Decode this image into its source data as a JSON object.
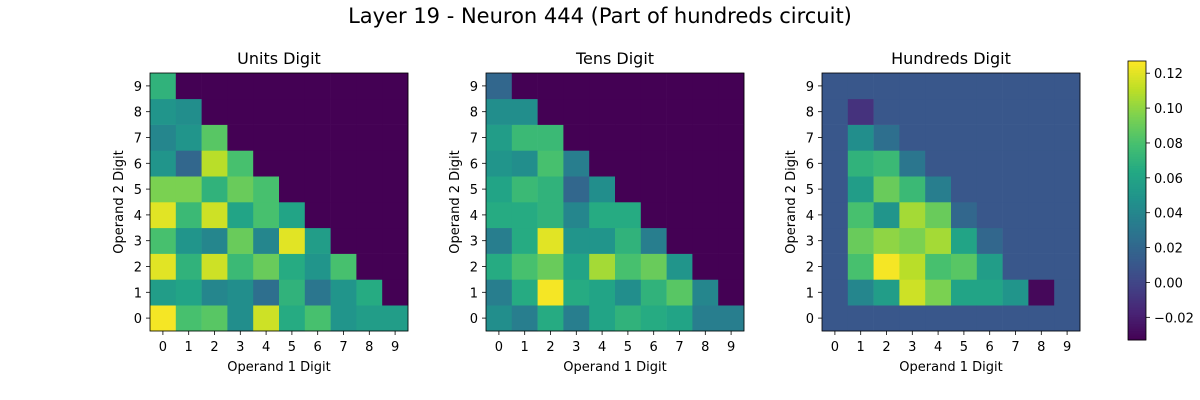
{
  "figure": {
    "title": "Layer 19 - Neuron 444 (Part of hundreds circuit)"
  },
  "colorbar": {
    "ticks": [
      -0.02,
      0.0,
      0.02,
      0.04,
      0.06,
      0.08,
      0.1,
      0.12
    ],
    "tick_labels": [
      "−0.02",
      "0.00",
      "0.02",
      "0.04",
      "0.06",
      "0.08",
      "0.10",
      "0.12"
    ],
    "vmin": -0.033,
    "vmax": 0.127,
    "colormap": "viridis"
  },
  "chart_data": [
    {
      "type": "heatmap",
      "title": "Units Digit",
      "xlabel": "Operand 1 Digit",
      "ylabel": "Operand 2 Digit",
      "x_ticks": [
        "0",
        "1",
        "2",
        "3",
        "4",
        "5",
        "6",
        "7",
        "8",
        "9"
      ],
      "y_ticks": [
        "0",
        "1",
        "2",
        "3",
        "4",
        "5",
        "6",
        "7",
        "8",
        "9"
      ],
      "rows_y_bottom_to_top": [
        [
          0.125,
          0.08,
          0.085,
          0.045,
          0.115,
          0.065,
          0.08,
          0.05,
          0.055,
          0.055
        ],
        [
          0.055,
          0.06,
          0.04,
          0.045,
          0.025,
          0.07,
          0.03,
          0.05,
          0.065,
          -0.033
        ],
        [
          0.12,
          0.07,
          0.115,
          0.075,
          0.09,
          0.065,
          0.05,
          0.08,
          -0.033,
          -0.033
        ],
        [
          0.08,
          0.05,
          0.04,
          0.09,
          0.04,
          0.12,
          0.055,
          -0.033,
          -0.033,
          -0.033
        ],
        [
          0.12,
          0.075,
          0.115,
          0.06,
          0.08,
          0.06,
          -0.033,
          -0.033,
          -0.033,
          -0.033
        ],
        [
          0.095,
          0.095,
          0.07,
          0.09,
          0.08,
          -0.033,
          -0.033,
          -0.033,
          -0.033,
          -0.033
        ],
        [
          0.05,
          0.02,
          0.11,
          0.08,
          -0.033,
          -0.033,
          -0.033,
          -0.033,
          -0.033,
          -0.033
        ],
        [
          0.04,
          0.05,
          0.085,
          -0.033,
          -0.033,
          -0.033,
          -0.033,
          -0.033,
          -0.033,
          -0.033
        ],
        [
          0.05,
          0.045,
          -0.033,
          -0.033,
          -0.033,
          -0.033,
          -0.033,
          -0.033,
          -0.033,
          -0.033
        ],
        [
          0.07,
          -0.033,
          -0.033,
          -0.033,
          -0.033,
          -0.033,
          -0.033,
          -0.033,
          -0.033,
          -0.033
        ]
      ]
    },
    {
      "type": "heatmap",
      "title": "Tens Digit",
      "xlabel": "Operand 1 Digit",
      "ylabel": "Operand 2 Digit",
      "x_ticks": [
        "0",
        "1",
        "2",
        "3",
        "4",
        "5",
        "6",
        "7",
        "8",
        "9"
      ],
      "y_ticks": [
        "0",
        "1",
        "2",
        "3",
        "4",
        "5",
        "6",
        "7",
        "8",
        "9"
      ],
      "rows_y_bottom_to_top": [
        [
          0.045,
          0.035,
          0.065,
          0.035,
          0.06,
          0.07,
          0.065,
          0.06,
          0.035,
          0.035
        ],
        [
          0.035,
          0.065,
          0.125,
          0.065,
          0.06,
          0.045,
          0.07,
          0.085,
          0.04,
          -0.033
        ],
        [
          0.065,
          0.08,
          0.09,
          0.06,
          0.105,
          0.08,
          0.09,
          0.05,
          -0.033,
          -0.033
        ],
        [
          0.035,
          0.065,
          0.12,
          0.05,
          0.05,
          0.07,
          0.035,
          -0.033,
          -0.033,
          -0.033
        ],
        [
          0.065,
          0.065,
          0.07,
          0.04,
          0.065,
          0.065,
          -0.033,
          -0.033,
          -0.033,
          -0.033
        ],
        [
          0.06,
          0.075,
          0.07,
          0.02,
          0.045,
          -0.033,
          -0.033,
          -0.033,
          -0.033,
          -0.033
        ],
        [
          0.05,
          0.045,
          0.08,
          0.035,
          -0.033,
          -0.033,
          -0.033,
          -0.033,
          -0.033,
          -0.033
        ],
        [
          0.055,
          0.075,
          0.075,
          -0.033,
          -0.033,
          -0.033,
          -0.033,
          -0.033,
          -0.033,
          -0.033
        ],
        [
          0.045,
          0.045,
          -0.033,
          -0.033,
          -0.033,
          -0.033,
          -0.033,
          -0.033,
          -0.033,
          -0.033
        ],
        [
          0.02,
          -0.033,
          -0.033,
          -0.033,
          -0.033,
          -0.033,
          -0.033,
          -0.033,
          -0.033,
          -0.033
        ]
      ]
    },
    {
      "type": "heatmap",
      "title": "Hundreds Digit",
      "xlabel": "Operand 1 Digit",
      "ylabel": "Operand 2 Digit",
      "x_ticks": [
        "0",
        "1",
        "2",
        "3",
        "4",
        "5",
        "6",
        "7",
        "8",
        "9"
      ],
      "y_ticks": [
        "0",
        "1",
        "2",
        "3",
        "4",
        "5",
        "6",
        "7",
        "8",
        "9"
      ],
      "rows_y_bottom_to_top": [
        [
          0.01,
          0.01,
          0.01,
          0.01,
          0.01,
          0.01,
          0.01,
          0.01,
          0.01,
          0.01
        ],
        [
          0.01,
          0.04,
          0.055,
          0.115,
          0.095,
          0.06,
          0.06,
          0.05,
          -0.03,
          0.01
        ],
        [
          0.01,
          0.08,
          0.125,
          0.11,
          0.08,
          0.085,
          0.055,
          0.01,
          0.01,
          0.01
        ],
        [
          0.01,
          0.09,
          0.1,
          0.095,
          0.105,
          0.06,
          0.02,
          0.01,
          0.01,
          0.01
        ],
        [
          0.01,
          0.08,
          0.05,
          0.105,
          0.09,
          0.02,
          0.01,
          0.01,
          0.01,
          0.01
        ],
        [
          0.01,
          0.055,
          0.09,
          0.075,
          0.035,
          0.01,
          0.01,
          0.01,
          0.01,
          0.01
        ],
        [
          0.01,
          0.07,
          0.075,
          0.03,
          0.01,
          0.01,
          0.01,
          0.01,
          0.01,
          0.01
        ],
        [
          0.01,
          0.045,
          0.025,
          0.01,
          0.01,
          0.01,
          0.01,
          0.01,
          0.01,
          0.01
        ],
        [
          0.01,
          -0.01,
          0.01,
          0.01,
          0.01,
          0.01,
          0.01,
          0.01,
          0.01,
          0.01
        ],
        [
          0.01,
          0.01,
          0.01,
          0.01,
          0.01,
          0.01,
          0.01,
          0.01,
          0.01,
          0.01
        ]
      ]
    }
  ]
}
